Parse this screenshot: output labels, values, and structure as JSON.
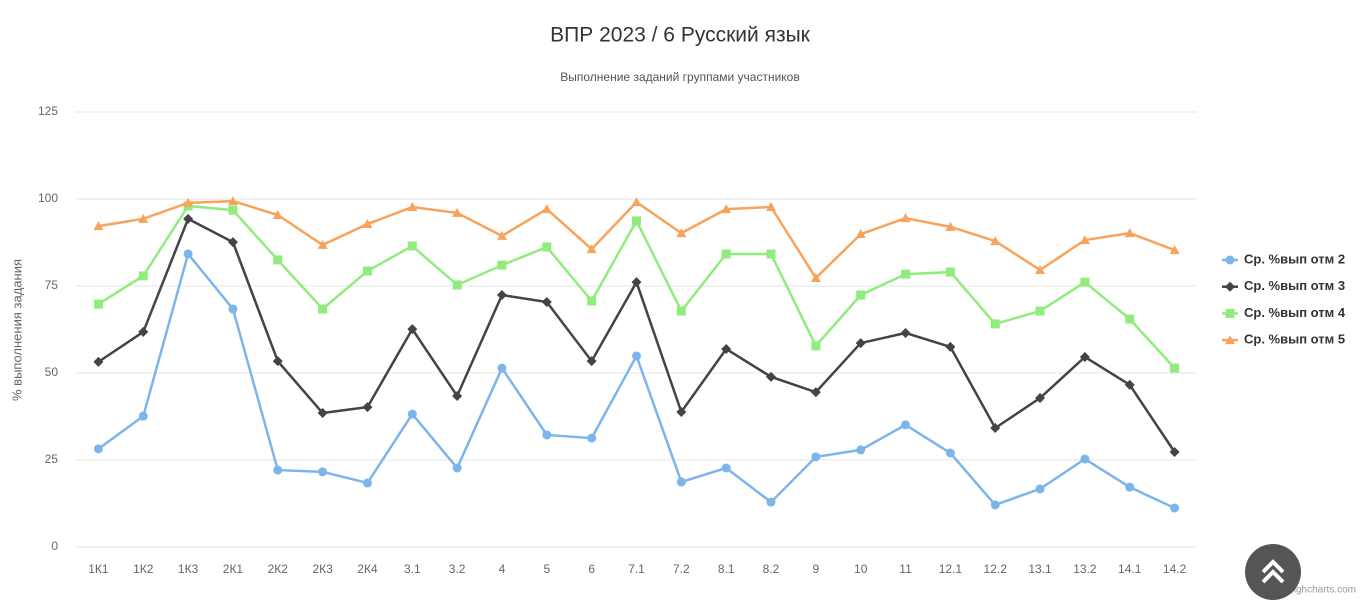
{
  "chart_data": {
    "type": "line",
    "title": "ВПР 2023 / 6 Русский язык",
    "subtitle": "Выполнение заданий группами участников",
    "y_axis_label": "% выполнения задания",
    "credit": "Highcharts.com",
    "categories": [
      "1К1",
      "1К2",
      "1К3",
      "2К1",
      "2К2",
      "2К3",
      "2К4",
      "3.1",
      "3.2",
      "4",
      "5",
      "6",
      "7.1",
      "7.2",
      "8.1",
      "8.2",
      "9",
      "10",
      "11",
      "12.1",
      "12.2",
      "13.1",
      "13.2",
      "14.1",
      "14.2"
    ],
    "ylim": [
      0,
      125
    ],
    "yticks": [
      0,
      25,
      50,
      75,
      100,
      125
    ],
    "grid": true,
    "legend": "right",
    "series": [
      {
        "name": "Ср. %вып отм 2",
        "color": "#7cb5ec",
        "marker": "circle",
        "values": [
          28.2,
          37.6,
          84.2,
          68.4,
          22.1,
          21.6,
          18.4,
          38.2,
          22.7,
          51.4,
          32.2,
          31.3,
          54.9,
          18.7,
          22.7,
          12.9,
          25.9,
          27.9,
          35.1,
          27.0,
          12.1,
          16.7,
          25.3,
          17.2,
          11.2
        ]
      },
      {
        "name": "Ср. %вып отм 3",
        "color": "#434348",
        "marker": "diamond",
        "values": [
          53.2,
          61.8,
          94.3,
          87.6,
          53.4,
          38.5,
          40.2,
          62.6,
          43.4,
          72.4,
          70.4,
          53.4,
          76.1,
          38.8,
          56.9,
          48.9,
          44.5,
          58.6,
          61.5,
          57.5,
          34.2,
          42.8,
          54.6,
          46.6,
          27.3
        ]
      },
      {
        "name": "Ср. %вып отм 4",
        "color": "#90ed7d",
        "marker": "square",
        "values": [
          69.8,
          77.9,
          98.0,
          96.8,
          82.5,
          68.4,
          79.3,
          86.5,
          75.3,
          81.0,
          86.2,
          70.7,
          93.7,
          67.8,
          84.2,
          84.2,
          57.8,
          72.4,
          78.4,
          79.0,
          64.1,
          67.8,
          76.1,
          65.5,
          51.4
        ]
      },
      {
        "name": "Ср. %вып отм 5",
        "color": "#f7a35c",
        "marker": "triangle",
        "values": [
          92.2,
          94.3,
          98.9,
          99.4,
          95.4,
          86.8,
          92.8,
          97.7,
          96.0,
          89.4,
          97.1,
          85.6,
          99.1,
          90.2,
          97.1,
          97.7,
          77.3,
          89.9,
          94.5,
          92.0,
          87.9,
          79.6,
          88.2,
          90.2,
          85.3
        ]
      }
    ]
  }
}
